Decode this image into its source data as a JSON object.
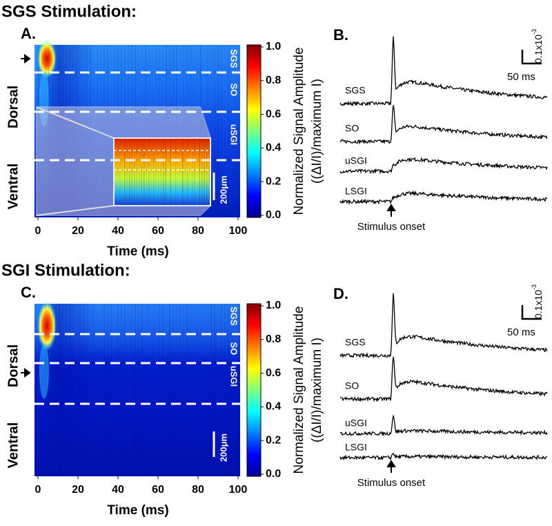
{
  "sections": [
    {
      "title": "SGS Stimulation:",
      "heatmap": {
        "label": "A.",
        "x_ticks": [
          0,
          20,
          40,
          60,
          80,
          100
        ],
        "x_label": "Time (ms)",
        "colorbar_ticks": [
          "1.0",
          "0.8",
          "0.6",
          "0.4",
          "0.2",
          "0.0"
        ],
        "colorbar_label": [
          "Normalized Signal Amplitude",
          "((ΔI/I)/maximum I)"
        ],
        "side_labels": [
          "Dorsal",
          "Ventral"
        ],
        "layers": [
          "SGS",
          "SO",
          "uSGI"
        ],
        "scale_bar": "200μm"
      },
      "traces": {
        "label": "B.",
        "time_scale": "50 ms",
        "amp_scale": "0.1x10",
        "amp_exp": "-3",
        "rows": [
          "SGS",
          "SO",
          "uSGI",
          "LSGI"
        ],
        "onset": "Stimulus onset"
      }
    },
    {
      "title": "SGI Stimulation:",
      "heatmap": {
        "label": "C.",
        "x_ticks": [
          0,
          20,
          40,
          60,
          80,
          100
        ],
        "x_label": "Time (ms)",
        "colorbar_ticks": [
          "1.0",
          "0.8",
          "0.6",
          "0.4",
          "0.2",
          "0.0"
        ],
        "colorbar_label": [
          "Normalized Signal Amplitude",
          "((ΔI/I)/maximum I)"
        ],
        "side_labels": [
          "Dorsal",
          "Ventral"
        ],
        "layers": [
          "SGS",
          "SO",
          "uSGI"
        ],
        "scale_bar": "200μm"
      },
      "traces": {
        "label": "D.",
        "time_scale": "50 ms",
        "amp_scale": "0.1x10",
        "amp_exp": "-3",
        "rows": [
          "SGS",
          "SO",
          "uSGI",
          "LSGI"
        ],
        "onset": "Stimulus onset"
      }
    }
  ]
}
